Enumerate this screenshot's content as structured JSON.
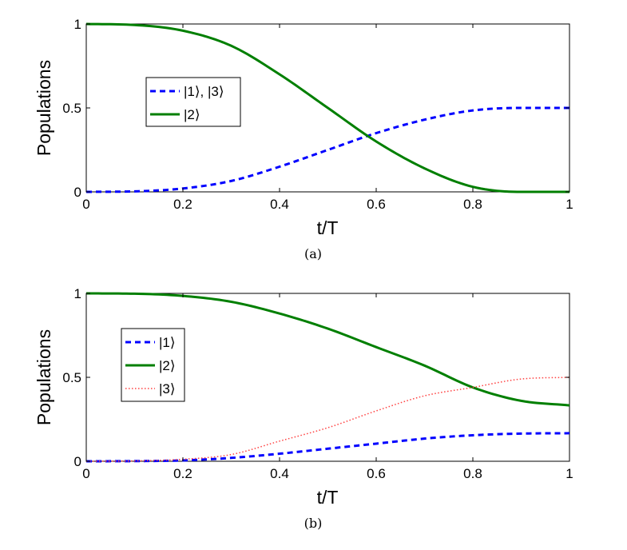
{
  "chart_data": [
    {
      "type": "line",
      "id": "a",
      "caption": "(a)",
      "xlabel": "t/T",
      "ylabel": "Populations",
      "xlim": [
        0,
        1
      ],
      "ylim": [
        0,
        1
      ],
      "x_ticks": [
        "0",
        "0.2",
        "0.4",
        "0.6",
        "0.8",
        "1"
      ],
      "y_ticks": [
        "0",
        "0.5",
        "1"
      ],
      "legend_position": "upper-left",
      "series": [
        {
          "name": "|1⟩, |3⟩",
          "color": "#0000ff",
          "style": "dashed",
          "x": [
            0,
            0.1,
            0.2,
            0.3,
            0.4,
            0.5,
            0.6,
            0.7,
            0.8,
            0.9,
            1.0
          ],
          "y": [
            0.0,
            0.003,
            0.02,
            0.065,
            0.15,
            0.25,
            0.35,
            0.43,
            0.485,
            0.5,
            0.5
          ]
        },
        {
          "name": "|2⟩",
          "color": "#007f00",
          "style": "solid",
          "x": [
            0,
            0.1,
            0.2,
            0.3,
            0.4,
            0.5,
            0.6,
            0.7,
            0.8,
            0.9,
            1.0
          ],
          "y": [
            1.0,
            0.994,
            0.96,
            0.87,
            0.7,
            0.5,
            0.3,
            0.14,
            0.03,
            0.0,
            0.0
          ]
        }
      ]
    },
    {
      "type": "line",
      "id": "b",
      "caption": "(b)",
      "xlabel": "t/T",
      "ylabel": "Populations",
      "xlim": [
        0,
        1
      ],
      "ylim": [
        0,
        1
      ],
      "x_ticks": [
        "0",
        "0.2",
        "0.4",
        "0.6",
        "0.8",
        "1"
      ],
      "y_ticks": [
        "0",
        "0.5",
        "1"
      ],
      "legend_position": "upper-left",
      "series": [
        {
          "name": "|1⟩",
          "color": "#0000ff",
          "style": "dashed",
          "x": [
            0,
            0.1,
            0.2,
            0.3,
            0.4,
            0.5,
            0.6,
            0.7,
            0.8,
            0.9,
            1.0
          ],
          "y": [
            0.0,
            0.001,
            0.005,
            0.02,
            0.045,
            0.075,
            0.105,
            0.135,
            0.155,
            0.165,
            0.167
          ]
        },
        {
          "name": "|2⟩",
          "color": "#007f00",
          "style": "solid",
          "x": [
            0,
            0.1,
            0.2,
            0.3,
            0.4,
            0.5,
            0.6,
            0.7,
            0.8,
            0.9,
            1.0
          ],
          "y": [
            1.0,
            0.998,
            0.985,
            0.95,
            0.88,
            0.79,
            0.68,
            0.57,
            0.44,
            0.36,
            0.333
          ]
        },
        {
          "name": "|3⟩",
          "color": "#ff4040",
          "style": "dotted",
          "x": [
            0,
            0.1,
            0.2,
            0.3,
            0.4,
            0.5,
            0.6,
            0.7,
            0.8,
            0.9,
            1.0
          ],
          "y": [
            0.0,
            0.002,
            0.012,
            0.04,
            0.12,
            0.2,
            0.3,
            0.39,
            0.44,
            0.49,
            0.5
          ]
        }
      ]
    }
  ]
}
